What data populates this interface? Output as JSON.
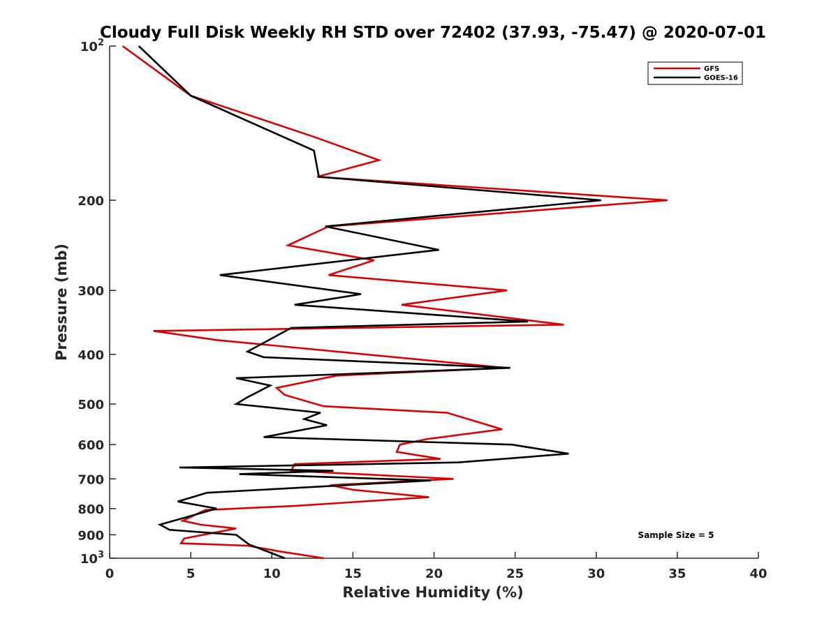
{
  "chart_data": {
    "type": "line",
    "title": "Cloudy Full Disk Weekly RH STD over 72402 (37.93, -75.47) @ 2020-07-01",
    "xlabel": "Relative Humidity (%)",
    "ylabel": "Pressure (mb)",
    "xlim": [
      0,
      40
    ],
    "ylim": [
      100,
      1000
    ],
    "y_scale": "log",
    "y_reversed": true,
    "grid": false,
    "legend_position": "top-right",
    "annotation": "Sample Size = 5",
    "x_ticks": [
      "0",
      "5",
      "10",
      "15",
      "20",
      "25",
      "30",
      "35",
      "40"
    ],
    "y_ticks": [
      {
        "value": 100,
        "base": "10",
        "exp": "2"
      },
      {
        "value": 200,
        "label": "200"
      },
      {
        "value": 300,
        "label": "300"
      },
      {
        "value": 400,
        "label": "400"
      },
      {
        "value": 500,
        "label": "500"
      },
      {
        "value": 600,
        "label": "600"
      },
      {
        "value": 700,
        "label": "700"
      },
      {
        "value": 800,
        "label": "800"
      },
      {
        "value": 900,
        "label": "900"
      },
      {
        "value": 1000,
        "base": "10",
        "exp": "3"
      }
    ],
    "series": [
      {
        "name": "GFS",
        "color": "#dd0000",
        "points": [
          [
            0.8,
            100
          ],
          [
            5.0,
            125
          ],
          [
            12.5,
            150
          ],
          [
            16.6,
            167
          ],
          [
            12.8,
            180
          ],
          [
            34.4,
            200
          ],
          [
            13.5,
            225
          ],
          [
            11.0,
            245
          ],
          [
            16.3,
            262
          ],
          [
            13.5,
            280
          ],
          [
            24.5,
            300
          ],
          [
            18.0,
            320
          ],
          [
            28.0,
            350
          ],
          [
            2.7,
            360
          ],
          [
            6.6,
            375
          ],
          [
            24.4,
            425
          ],
          [
            14.0,
            440
          ],
          [
            10.3,
            465
          ],
          [
            10.8,
            480
          ],
          [
            13.2,
            505
          ],
          [
            20.8,
            520
          ],
          [
            24.2,
            560
          ],
          [
            19.6,
            585
          ],
          [
            17.9,
            600
          ],
          [
            17.7,
            620
          ],
          [
            20.4,
            640
          ],
          [
            11.4,
            655
          ],
          [
            11.2,
            675
          ],
          [
            21.2,
            700
          ],
          [
            13.6,
            720
          ],
          [
            15.0,
            735
          ],
          [
            19.7,
            760
          ],
          [
            11.5,
            790
          ],
          [
            5.9,
            805
          ],
          [
            4.5,
            845
          ],
          [
            5.6,
            860
          ],
          [
            7.8,
            875
          ],
          [
            4.6,
            915
          ],
          [
            4.4,
            935
          ],
          [
            8.5,
            945
          ],
          [
            10.5,
            970
          ],
          [
            13.2,
            1000
          ]
        ]
      },
      {
        "name": "GOES-16",
        "color": "#000000",
        "points": [
          [
            1.8,
            100
          ],
          [
            5.0,
            125
          ],
          [
            12.6,
            160
          ],
          [
            12.9,
            180
          ],
          [
            30.3,
            200
          ],
          [
            13.3,
            225
          ],
          [
            20.3,
            250
          ],
          [
            6.8,
            280
          ],
          [
            15.5,
            305
          ],
          [
            11.4,
            320
          ],
          [
            25.8,
            345
          ],
          [
            11.2,
            355
          ],
          [
            8.5,
            395
          ],
          [
            9.5,
            405
          ],
          [
            24.7,
            425
          ],
          [
            7.8,
            445
          ],
          [
            9.9,
            460
          ],
          [
            8.5,
            485
          ],
          [
            7.8,
            500
          ],
          [
            13.0,
            520
          ],
          [
            12.0,
            535
          ],
          [
            13.4,
            550
          ],
          [
            9.5,
            580
          ],
          [
            24.8,
            600
          ],
          [
            28.3,
            625
          ],
          [
            21.5,
            650
          ],
          [
            4.3,
            665
          ],
          [
            13.8,
            675
          ],
          [
            8.0,
            685
          ],
          [
            19.8,
            705
          ],
          [
            6.0,
            745
          ],
          [
            4.2,
            775
          ],
          [
            6.6,
            800
          ],
          [
            3.1,
            860
          ],
          [
            3.7,
            880
          ],
          [
            7.8,
            900
          ],
          [
            8.6,
            940
          ],
          [
            10.8,
            1000
          ]
        ]
      }
    ]
  }
}
